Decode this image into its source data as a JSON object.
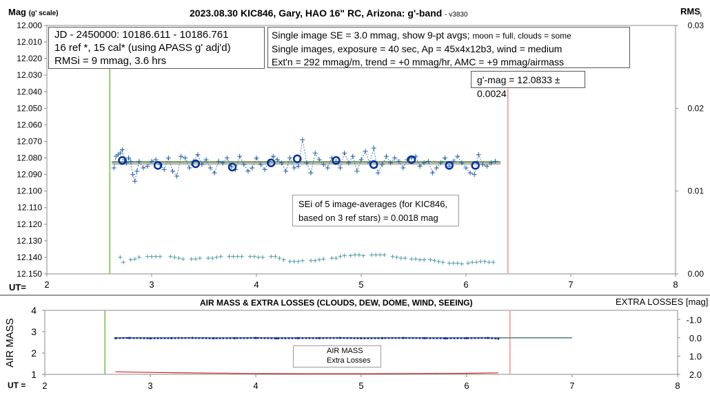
{
  "top_chart": {
    "title": "2023.08.30 KIC846, Gary, HAO 16\" RC, Arizona: g'-band",
    "title_version": "- v3830",
    "ylabel": "Mag",
    "ylabel_unit": "(g' scale)",
    "y2label": "RMS",
    "y2label_sub": "i",
    "xlabel": "UT=",
    "info_left": [
      "JD - 2450000: 10186.611 - 10186.761",
      "16 ref *, 15 cal* (using APASS g' adj'd)",
      "RMSi = 9 mmag, 3.6 hrs"
    ],
    "info_right": {
      "line1_main": "Single image SE = 3.0 mmag, show  9-pt avgs;",
      "line1_small": "moon = full, clouds = some",
      "line2": "Single images, exposure = 40 sec, Ap = 45x4x12b3, wind = medium",
      "line3": "Ext'n = 292 mmag/m, trend = +0 mmag/hr, AMC = +9 mmag/airmass"
    },
    "mag_result": "g'-mag = 12.0833 ± 0.0024",
    "sei_note": [
      "SEi of 5 image-averages (for KIC846,",
      "based on 3 ref stars) = 0.0018 mag"
    ]
  },
  "bottom_chart": {
    "title": "AIR MASS & EXTRA LOSSES (CLOUDS, DEW, DOME, WIND, SEEING)",
    "ylabel": "AIR MASS",
    "y2label": "EXTRA LOSSES [mag]",
    "xlabel": "UT =",
    "legend": [
      "AIR MASS",
      "Extra Losses"
    ]
  },
  "chart_data": [
    {
      "type": "scatter",
      "xlabel": "UT=",
      "ylabel": "Mag (g' scale)",
      "y2label": "RMSi",
      "x_ticks": [
        "2",
        "3",
        "4",
        "5",
        "6",
        "7",
        "8"
      ],
      "y_ticks": [
        "12.000",
        "12.010",
        "12.020",
        "12.030",
        "12.040",
        "12.050",
        "12.060",
        "12.070",
        "12.080",
        "12.090",
        "12.100",
        "12.110",
        "12.120",
        "12.130",
        "12.140",
        "12.150"
      ],
      "y2_ticks": [
        "0.03",
        "0.02",
        "0.01",
        "0.00"
      ],
      "xlim": [
        2,
        8
      ],
      "ylim": [
        12.15,
        12.0
      ],
      "y2lim": [
        0,
        0.03
      ],
      "colors": {
        "points": "#1f5fa6",
        "avg": "#002fa0",
        "trend": "#7a9e5a",
        "mean": "#aaaaaa",
        "rms": "#4a9aa4",
        "start": "#8fcb6b",
        "end": "#f2a7a7"
      },
      "start_ut": 2.6,
      "end_ut": 6.4,
      "mean_mag": 12.0833,
      "series": [
        {
          "name": "single",
          "x": [
            2.64,
            2.66,
            2.68,
            2.7,
            2.72,
            2.74,
            2.76,
            2.78,
            2.8,
            2.82,
            2.84,
            2.86,
            2.88,
            2.92,
            2.96,
            3.0,
            3.04,
            3.08,
            3.12,
            3.16,
            3.2,
            3.24,
            3.28,
            3.32,
            3.36,
            3.4,
            3.44,
            3.48,
            3.52,
            3.56,
            3.6,
            3.64,
            3.68,
            3.72,
            3.76,
            3.8,
            3.84,
            3.88,
            3.92,
            3.96,
            4.0,
            4.04,
            4.08,
            4.12,
            4.16,
            4.2,
            4.24,
            4.28,
            4.32,
            4.36,
            4.4,
            4.44,
            4.48,
            4.52,
            4.56,
            4.6,
            4.64,
            4.68,
            4.72,
            4.76,
            4.8,
            4.84,
            4.88,
            4.92,
            4.96,
            5.0,
            5.04,
            5.08,
            5.12,
            5.16,
            5.2,
            5.24,
            5.28,
            5.32,
            5.36,
            5.4,
            5.44,
            5.48,
            5.52,
            5.56,
            5.6,
            5.64,
            5.68,
            5.72,
            5.76,
            5.8,
            5.84,
            5.88,
            5.92,
            5.96,
            6.0,
            6.04,
            6.08,
            6.12,
            6.16,
            6.2,
            6.24,
            6.28
          ],
          "y": [
            12.086,
            12.079,
            12.078,
            12.077,
            12.075,
            12.081,
            12.083,
            12.08,
            12.082,
            12.09,
            12.094,
            12.088,
            12.082,
            12.086,
            12.085,
            12.082,
            12.081,
            12.084,
            12.087,
            12.08,
            12.088,
            12.091,
            12.079,
            12.08,
            12.086,
            12.082,
            12.078,
            12.084,
            12.081,
            12.086,
            12.089,
            12.082,
            12.083,
            12.08,
            12.085,
            12.087,
            12.079,
            12.084,
            12.088,
            12.086,
            12.08,
            12.084,
            12.087,
            12.082,
            12.079,
            12.081,
            12.083,
            12.088,
            12.08,
            12.086,
            12.085,
            12.069,
            12.083,
            12.089,
            12.077,
            12.081,
            12.084,
            12.086,
            12.08,
            12.082,
            12.086,
            12.077,
            12.083,
            12.079,
            12.088,
            12.081,
            12.076,
            12.083,
            12.074,
            12.089,
            12.084,
            12.079,
            12.083,
            12.08,
            12.082,
            12.086,
            12.081,
            12.08,
            12.079,
            12.085,
            12.083,
            12.082,
            12.089,
            12.086,
            12.083,
            12.08,
            12.085,
            12.082,
            12.079,
            12.083,
            12.086,
            12.089,
            12.09,
            12.078,
            12.084,
            12.085,
            12.083,
            12.082
          ]
        },
        {
          "name": "avg",
          "x": [
            2.72,
            3.06,
            3.42,
            3.77,
            4.14,
            4.39,
            4.76,
            5.12,
            5.48,
            5.84,
            6.09
          ],
          "y": [
            12.0815,
            12.0845,
            12.0835,
            12.0855,
            12.083,
            12.0805,
            12.0815,
            12.084,
            12.081,
            12.0845,
            12.0845
          ]
        },
        {
          "name": "rms",
          "x": [
            2.7,
            2.73,
            2.8,
            2.84,
            2.88,
            2.96,
            3.0,
            3.04,
            3.08,
            3.18,
            3.22,
            3.26,
            3.3,
            3.38,
            3.42,
            3.46,
            3.54,
            3.58,
            3.62,
            3.66,
            3.74,
            3.78,
            3.82,
            3.86,
            3.94,
            3.98,
            4.02,
            4.06,
            4.14,
            4.18,
            4.22,
            4.26,
            4.32,
            4.36,
            4.4,
            4.44,
            4.52,
            4.56,
            4.6,
            4.64,
            4.72,
            4.76,
            4.8,
            4.84,
            4.9,
            4.94,
            4.98,
            5.02,
            5.1,
            5.14,
            5.18,
            5.22,
            5.3,
            5.34,
            5.38,
            5.42,
            5.48,
            5.52,
            5.56,
            5.6,
            5.66,
            5.7,
            5.74,
            5.78,
            5.84,
            5.88,
            5.92,
            5.96,
            6.02,
            6.06,
            6.1,
            6.14,
            6.18,
            6.22,
            6.26
          ],
          "y": [
            0.002,
            0.0014,
            0.0017,
            0.0018,
            0.002,
            0.0021,
            0.0021,
            0.0021,
            0.0021,
            0.0021,
            0.002,
            0.0019,
            0.0018,
            0.0018,
            0.0018,
            0.0019,
            0.0019,
            0.0019,
            0.002,
            0.0021,
            0.0021,
            0.0021,
            0.0021,
            0.0021,
            0.0021,
            0.0021,
            0.002,
            0.002,
            0.0021,
            0.0021,
            0.0019,
            0.0017,
            0.0015,
            0.0015,
            0.0015,
            0.0016,
            0.0016,
            0.0016,
            0.0017,
            0.0018,
            0.0019,
            0.0019,
            0.0021,
            0.0022,
            0.0022,
            0.0023,
            0.0023,
            0.0022,
            0.0023,
            0.0023,
            0.0023,
            0.0023,
            0.0021,
            0.002,
            0.0019,
            0.0019,
            0.0018,
            0.0018,
            0.0017,
            0.0017,
            0.0017,
            0.0016,
            0.0015,
            0.0014,
            0.0013,
            0.0013,
            0.0013,
            0.0012,
            0.0013,
            0.0014,
            0.0014,
            0.0015,
            0.0015,
            0.0014,
            0.0014
          ]
        }
      ]
    },
    {
      "type": "line",
      "title": "AIR MASS & EXTRA LOSSES (CLOUDS, DEW, DOME, WIND, SEEING)",
      "xlabel": "UT =",
      "ylabel": "AIR MASS",
      "y2label": "EXTRA LOSSES [mag]",
      "x_ticks": [
        "2",
        "3",
        "4",
        "5",
        "6",
        "7",
        "8"
      ],
      "y_ticks": [
        "1",
        "2",
        "3",
        "4"
      ],
      "y2_ticks": [
        "-1.0",
        "0.0",
        "1.0",
        "2.0"
      ],
      "xlim": [
        2,
        8
      ],
      "ylim": [
        1,
        4
      ],
      "y2lim": [
        2.0,
        -1.5
      ],
      "colors": {
        "airmass": "#cc2222",
        "losses": "#1a2f9e",
        "zero": "#4a7a7a",
        "start": "#8fcb6b",
        "end": "#f2a7a7"
      },
      "start_ut": 2.57,
      "end_ut": 6.41,
      "series": [
        {
          "name": "AIR MASS",
          "x": [
            2.67,
            3.0,
            3.5,
            4.0,
            4.5,
            5.0,
            5.5,
            6.0,
            6.3
          ],
          "y": [
            1.12,
            1.09,
            1.06,
            1.04,
            1.03,
            1.03,
            1.04,
            1.05,
            1.07
          ]
        },
        {
          "name": "Extra Losses",
          "x": [
            2.67,
            2.8,
            3.0,
            3.2,
            3.4,
            3.6,
            3.8,
            4.0,
            4.2,
            4.4,
            4.6,
            4.8,
            5.0,
            5.2,
            5.4,
            5.6,
            5.8,
            6.0,
            6.2,
            6.3
          ],
          "y": [
            0.02,
            0.01,
            0.03,
            0.02,
            0.01,
            0.03,
            0.02,
            0.01,
            0.03,
            0.02,
            0.02,
            0.01,
            0.03,
            0.02,
            0.01,
            0.02,
            0.03,
            0.02,
            0.01,
            0.05
          ]
        }
      ]
    }
  ]
}
